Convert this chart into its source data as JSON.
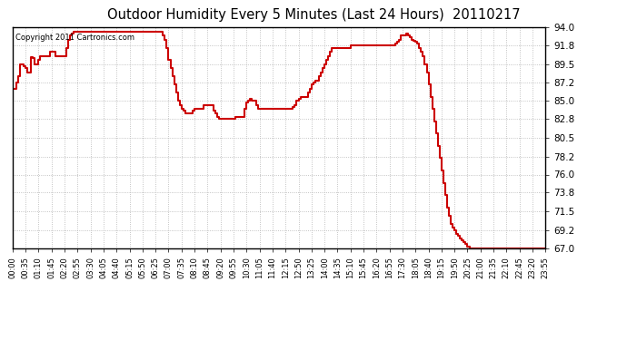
{
  "title": "Outdoor Humidity Every 5 Minutes (Last 24 Hours)  20110217",
  "copyright": "Copyright 2011 Cartronics.com",
  "line_color": "#cc0000",
  "bg_color": "#ffffff",
  "plot_bg_color": "#ffffff",
  "grid_color": "#aaaaaa",
  "ylim": [
    67.0,
    94.0
  ],
  "yticks": [
    67.0,
    69.2,
    71.5,
    73.8,
    76.0,
    78.2,
    80.5,
    82.8,
    85.0,
    87.2,
    89.5,
    91.8,
    94.0
  ],
  "humidity": [
    86.5,
    86.5,
    87.2,
    88.0,
    89.5,
    89.5,
    89.2,
    89.0,
    88.5,
    88.5,
    90.3,
    90.2,
    89.5,
    89.5,
    90.0,
    90.5,
    90.5,
    90.5,
    90.5,
    90.5,
    91.0,
    91.0,
    91.0,
    90.5,
    90.5,
    90.5,
    90.5,
    90.5,
    90.5,
    91.5,
    92.5,
    93.0,
    93.2,
    93.5,
    93.5,
    93.5,
    93.5,
    93.5,
    93.5,
    93.5,
    93.5,
    93.5,
    93.5,
    93.5,
    93.5,
    93.5,
    93.5,
    93.5,
    93.5,
    93.5,
    93.5,
    93.5,
    93.5,
    93.5,
    93.5,
    93.5,
    93.5,
    93.5,
    93.5,
    93.5,
    93.5,
    93.5,
    93.5,
    93.5,
    93.5,
    93.5,
    93.5,
    93.5,
    93.5,
    93.5,
    93.5,
    93.5,
    93.5,
    93.5,
    93.5,
    93.5,
    93.5,
    93.5,
    93.5,
    93.5,
    93.5,
    93.0,
    92.5,
    91.5,
    90.0,
    89.0,
    88.0,
    87.0,
    86.0,
    85.0,
    84.5,
    84.0,
    83.8,
    83.5,
    83.5,
    83.5,
    83.5,
    83.8,
    84.0,
    84.0,
    84.0,
    84.0,
    84.0,
    84.5,
    84.5,
    84.5,
    84.5,
    84.5,
    83.8,
    83.5,
    83.0,
    82.8,
    82.8,
    82.8,
    82.8,
    82.8,
    82.8,
    82.8,
    82.8,
    82.8,
    83.0,
    83.0,
    83.0,
    83.0,
    83.0,
    84.0,
    84.8,
    85.0,
    85.2,
    85.0,
    85.0,
    84.5,
    84.0,
    84.0,
    84.0,
    84.0,
    84.0,
    84.0,
    84.0,
    84.0,
    84.0,
    84.0,
    84.0,
    84.0,
    84.0,
    84.0,
    84.0,
    84.0,
    84.0,
    84.0,
    84.0,
    84.2,
    84.5,
    85.0,
    85.2,
    85.5,
    85.5,
    85.5,
    85.5,
    86.0,
    86.5,
    87.0,
    87.2,
    87.5,
    87.5,
    88.0,
    88.5,
    89.0,
    89.5,
    90.0,
    90.5,
    91.0,
    91.5,
    91.5,
    91.5,
    91.5,
    91.5,
    91.5,
    91.5,
    91.5,
    91.5,
    91.5,
    91.8,
    91.8,
    91.8,
    91.8,
    91.8,
    91.8,
    91.8,
    91.8,
    91.8,
    91.8,
    91.8,
    91.8,
    91.8,
    91.8,
    91.8,
    91.8,
    91.8,
    91.8,
    91.8,
    91.8,
    91.8,
    91.8,
    91.8,
    91.8,
    92.0,
    92.2,
    92.5,
    93.0,
    93.0,
    93.0,
    93.2,
    93.0,
    92.8,
    92.5,
    92.3,
    92.2,
    92.0,
    91.5,
    91.0,
    90.5,
    89.5,
    88.5,
    87.0,
    85.5,
    84.0,
    82.5,
    81.0,
    79.5,
    78.0,
    76.5,
    75.0,
    73.5,
    72.0,
    71.0,
    70.0,
    69.5,
    69.2,
    68.8,
    68.5,
    68.2,
    68.0,
    67.8,
    67.5,
    67.2,
    67.0,
    67.0,
    67.0,
    67.0,
    67.0,
    67.0,
    67.0,
    67.0,
    67.0,
    67.0,
    67.0,
    67.0,
    67.0,
    67.0,
    67.0,
    67.0,
    67.0,
    67.0,
    67.0,
    67.0,
    67.0,
    67.0,
    67.0,
    67.0,
    67.0,
    67.0,
    67.0,
    67.0,
    67.0,
    67.0,
    67.0,
    67.0,
    67.0,
    67.0,
    67.0,
    67.0,
    67.0,
    67.0,
    67.0,
    67.0,
    67.0,
    67.0,
    67.0,
    67.0,
    67.0
  ],
  "xtick_labels": [
    "00:00",
    "00:35",
    "01:10",
    "01:45",
    "02:20",
    "02:55",
    "03:30",
    "04:05",
    "04:40",
    "05:15",
    "05:50",
    "06:25",
    "07:00",
    "07:35",
    "08:10",
    "08:45",
    "09:20",
    "09:55",
    "10:30",
    "11:05",
    "11:40",
    "12:15",
    "12:50",
    "13:25",
    "14:00",
    "14:35",
    "15:10",
    "15:45",
    "16:20",
    "16:55",
    "17:30",
    "18:05",
    "18:40",
    "19:15",
    "19:50",
    "20:25",
    "21:00",
    "21:35",
    "22:10",
    "22:45",
    "23:20",
    "23:55"
  ],
  "num_points": 288,
  "line_width": 1.5
}
